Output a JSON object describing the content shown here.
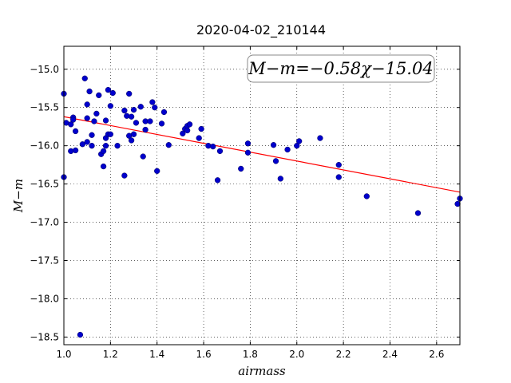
{
  "chart_data": {
    "type": "scatter",
    "title": "2020-04-02_210144",
    "xlabel": "airmass",
    "ylabel": "M−m",
    "xlim": [
      1.0,
      2.7
    ],
    "ylim": [
      -18.6,
      -14.7
    ],
    "xticks": [
      1.0,
      1.2,
      1.4,
      1.6,
      1.8,
      2.0,
      2.2,
      2.4,
      2.6
    ],
    "yticks": [
      -15.0,
      -15.5,
      -16.0,
      -16.5,
      -17.0,
      -17.5,
      -18.0,
      -18.5
    ],
    "xtick_labels": [
      "1.0",
      "1.2",
      "1.4",
      "1.6",
      "1.8",
      "2.0",
      "2.2",
      "2.4",
      "2.6"
    ],
    "ytick_labels": [
      "−15.0",
      "−15.5",
      "−16.0",
      "−16.5",
      "−17.0",
      "−17.5",
      "−18.0",
      "−18.5"
    ],
    "grid": true,
    "annotation": "M−m=−0.58χ−15.04",
    "fit": {
      "slope": -0.58,
      "intercept": -15.04,
      "color": "#ff0000"
    },
    "marker_color": "#0000cc",
    "points": [
      [
        1.0,
        -15.32
      ],
      [
        1.0,
        -16.41
      ],
      [
        1.01,
        -15.7
      ],
      [
        1.03,
        -15.72
      ],
      [
        1.03,
        -16.07
      ],
      [
        1.04,
        -15.63
      ],
      [
        1.04,
        -15.66
      ],
      [
        1.05,
        -16.06
      ],
      [
        1.05,
        -15.81
      ],
      [
        1.07,
        -18.47
      ],
      [
        1.08,
        -15.98
      ],
      [
        1.09,
        -15.12
      ],
      [
        1.1,
        -15.64
      ],
      [
        1.1,
        -15.46
      ],
      [
        1.1,
        -15.95
      ],
      [
        1.11,
        -15.29
      ],
      [
        1.12,
        -15.86
      ],
      [
        1.12,
        -16.0
      ],
      [
        1.13,
        -15.68
      ],
      [
        1.14,
        -15.58
      ],
      [
        1.15,
        -15.34
      ],
      [
        1.16,
        -16.11
      ],
      [
        1.17,
        -16.27
      ],
      [
        1.17,
        -16.07
      ],
      [
        1.18,
        -15.67
      ],
      [
        1.18,
        -15.9
      ],
      [
        1.18,
        -16.0
      ],
      [
        1.19,
        -15.85
      ],
      [
        1.19,
        -15.27
      ],
      [
        1.2,
        -15.48
      ],
      [
        1.2,
        -15.85
      ],
      [
        1.21,
        -15.31
      ],
      [
        1.23,
        -16.0
      ],
      [
        1.26,
        -15.54
      ],
      [
        1.26,
        -16.39
      ],
      [
        1.27,
        -15.61
      ],
      [
        1.28,
        -15.32
      ],
      [
        1.28,
        -15.87
      ],
      [
        1.29,
        -15.62
      ],
      [
        1.29,
        -15.93
      ],
      [
        1.3,
        -15.53
      ],
      [
        1.3,
        -15.85
      ],
      [
        1.31,
        -15.7
      ],
      [
        1.33,
        -15.49
      ],
      [
        1.34,
        -16.14
      ],
      [
        1.35,
        -15.68
      ],
      [
        1.35,
        -15.79
      ],
      [
        1.37,
        -15.68
      ],
      [
        1.38,
        -15.43
      ],
      [
        1.39,
        -15.5
      ],
      [
        1.4,
        -16.33
      ],
      [
        1.42,
        -15.71
      ],
      [
        1.43,
        -15.56
      ],
      [
        1.45,
        -15.99
      ],
      [
        1.51,
        -15.84
      ],
      [
        1.52,
        -15.78
      ],
      [
        1.53,
        -15.74
      ],
      [
        1.53,
        -15.8
      ],
      [
        1.54,
        -15.72
      ],
      [
        1.58,
        -15.9
      ],
      [
        1.59,
        -15.78
      ],
      [
        1.62,
        -16.0
      ],
      [
        1.64,
        -16.01
      ],
      [
        1.66,
        -16.45
      ],
      [
        1.67,
        -16.07
      ],
      [
        1.76,
        -16.3
      ],
      [
        1.79,
        -15.97
      ],
      [
        1.79,
        -16.09
      ],
      [
        1.9,
        -15.99
      ],
      [
        1.91,
        -16.2
      ],
      [
        1.93,
        -16.43
      ],
      [
        1.96,
        -16.05
      ],
      [
        2.0,
        -16.0
      ],
      [
        2.01,
        -15.94
      ],
      [
        2.1,
        -15.9
      ],
      [
        2.18,
        -16.25
      ],
      [
        2.18,
        -16.41
      ],
      [
        2.3,
        -16.66
      ],
      [
        2.52,
        -16.88
      ],
      [
        2.69,
        -16.76
      ],
      [
        2.7,
        -16.69
      ]
    ]
  }
}
